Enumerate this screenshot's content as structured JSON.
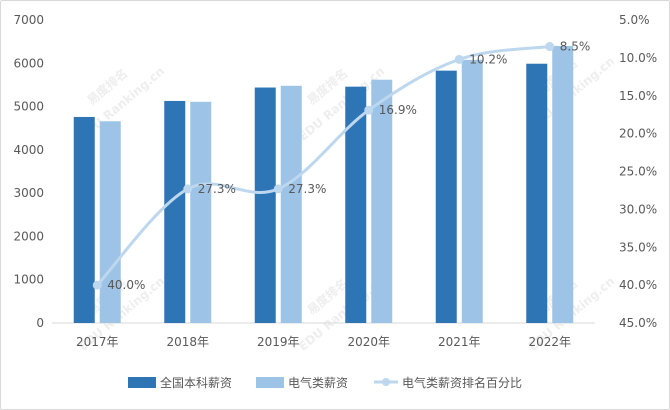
{
  "chart_data": {
    "type": "bar",
    "categories": [
      "2017年",
      "2018年",
      "2019年",
      "2020年",
      "2021年",
      "2022年"
    ],
    "series": [
      {
        "name": "全国本科薪资",
        "type": "bar",
        "axis": "left",
        "color": "#2e75b6",
        "values": [
          4760,
          5130,
          5440,
          5460,
          5830,
          5990
        ]
      },
      {
        "name": "电气类薪资",
        "type": "bar",
        "axis": "left",
        "color": "#9dc3e6",
        "values": [
          4660,
          5110,
          5480,
          5620,
          6080,
          6400
        ]
      },
      {
        "name": "电气类薪资排名百分比",
        "type": "line",
        "axis": "right",
        "color": "#bdd7ee",
        "values": [
          40.0,
          27.3,
          27.3,
          16.9,
          10.2,
          8.5
        ],
        "labels": [
          "40.0%",
          "27.3%",
          "27.3%",
          "16.9%",
          "10.2%",
          "8.5%"
        ]
      }
    ],
    "y_left": {
      "min": 0,
      "max": 7000,
      "ticks": [
        "0",
        "1000",
        "2000",
        "3000",
        "4000",
        "5000",
        "6000",
        "7000"
      ]
    },
    "y_right": {
      "min": 5,
      "max": 45,
      "reversed": true,
      "ticks": [
        "5.0%",
        "10.0%",
        "15.0%",
        "20.0%",
        "25.0%",
        "30.0%",
        "35.0%",
        "40.0%",
        "45.0%"
      ]
    },
    "legend_position": "bottom",
    "grid": false
  },
  "watermark": {
    "text": "易度排名",
    "subtext": "EDU Ranking.cn"
  }
}
